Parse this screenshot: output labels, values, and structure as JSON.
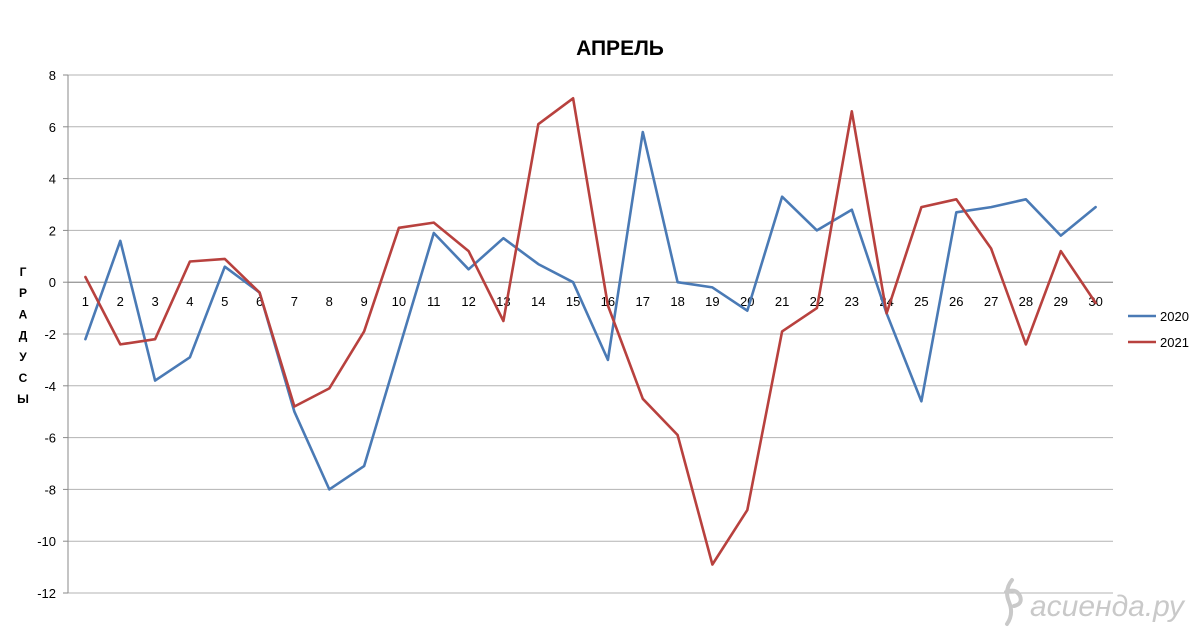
{
  "chart_data": {
    "type": "line",
    "title": "АПРЕЛЬ",
    "ylabel_letters": [
      "Г",
      "Р",
      "А",
      "Д",
      "У",
      "С",
      "Ы"
    ],
    "xlabel": "",
    "ylim": [
      -12,
      8
    ],
    "yticks": [
      8,
      6,
      4,
      2,
      0,
      -2,
      -4,
      -6,
      -8,
      -10,
      -12
    ],
    "grid": true,
    "legend_position": "right",
    "x": [
      1,
      2,
      3,
      4,
      5,
      6,
      7,
      8,
      9,
      10,
      11,
      12,
      13,
      14,
      15,
      16,
      17,
      18,
      19,
      20,
      21,
      22,
      23,
      24,
      25,
      26,
      27,
      28,
      29,
      30
    ],
    "series": [
      {
        "name": "2020",
        "color": "#4a7ab5",
        "values": [
          -2.2,
          1.6,
          -3.8,
          -2.9,
          0.6,
          -0.4,
          -5,
          -8,
          -7.1,
          -2.6,
          1.9,
          0.5,
          1.7,
          0.7,
          0,
          -3,
          5.8,
          0,
          -0.2,
          -1.1,
          3.3,
          2,
          2.8,
          -1.2,
          -4.6,
          2.7,
          2.9,
          3.2,
          1.8,
          2.9
        ]
      },
      {
        "name": "2021",
        "color": "#b8413e",
        "values": [
          0.2,
          -2.4,
          -2.2,
          0.8,
          0.9,
          -0.4,
          -4.8,
          -4.1,
          -1.9,
          2.1,
          2.3,
          1.2,
          -1.5,
          6.1,
          7.1,
          -0.9,
          -4.5,
          -5.9,
          -10.9,
          -8.8,
          -1.9,
          -1,
          6.6,
          -1.2,
          2.9,
          3.2,
          1.3,
          -2.4,
          1.2,
          -0.8
        ]
      }
    ]
  },
  "watermark": {
    "text": "асиенда.ру",
    "icon": "flourish-icon"
  }
}
